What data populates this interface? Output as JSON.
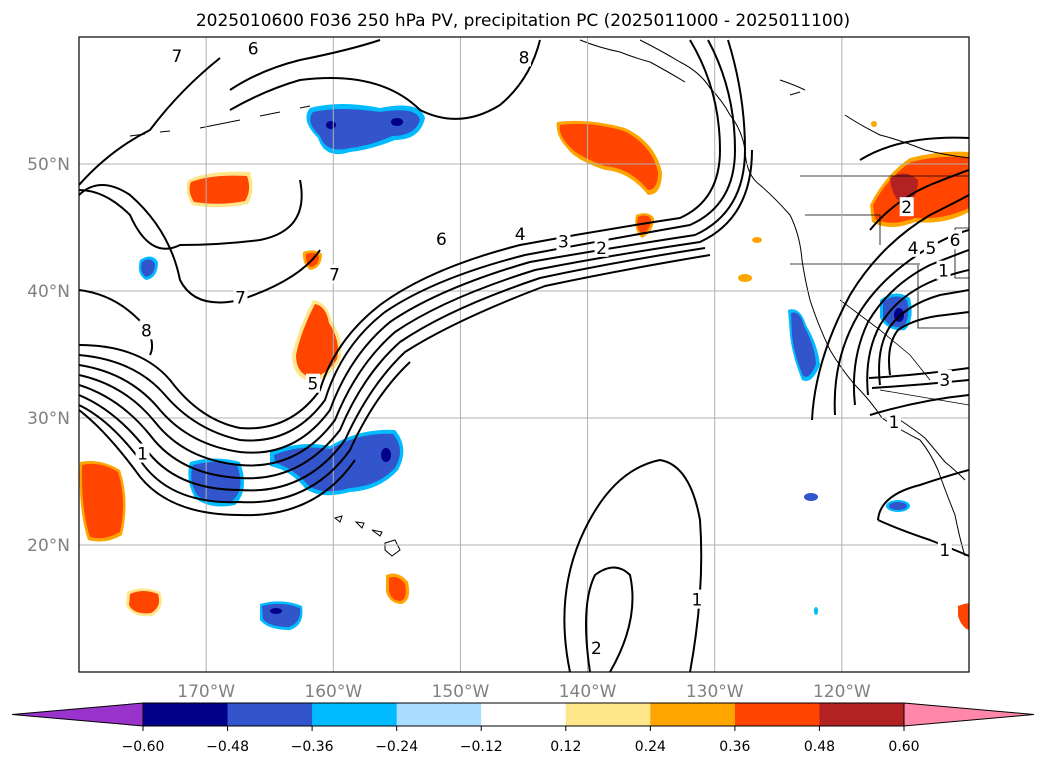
{
  "chart_data": {
    "type": "map-contour",
    "title": "2025010600 F036 250 hPa PV, precipitation PC (2025011000 - 2025011100)",
    "lon_range": [
      -180,
      -110
    ],
    "lat_range": [
      10,
      60
    ],
    "grid": true,
    "x_ticks": [
      {
        "lon": -170,
        "label": "170°W"
      },
      {
        "lon": -160,
        "label": "160°W"
      },
      {
        "lon": -150,
        "label": "150°W"
      },
      {
        "lon": -140,
        "label": "140°W"
      },
      {
        "lon": -130,
        "label": "130°W"
      },
      {
        "lon": -120,
        "label": "120°W"
      }
    ],
    "y_ticks": [
      {
        "lat": 20,
        "label": "20°N"
      },
      {
        "lat": 30,
        "label": "30°N"
      },
      {
        "lat": 40,
        "label": "40°N"
      },
      {
        "lat": 50,
        "label": "50°N"
      }
    ],
    "colorbar": {
      "extend": "both",
      "levels": [
        -0.6,
        -0.48,
        -0.36,
        -0.24,
        -0.12,
        0.12,
        0.24,
        0.36,
        0.48,
        0.6
      ],
      "tick_labels": [
        "−0.60",
        "−0.48",
        "−0.36",
        "−0.24",
        "−0.12",
        "0.12",
        "0.24",
        "0.36",
        "0.48",
        "0.60"
      ],
      "colors": [
        "#9933cc",
        "#00008b",
        "#3355cc",
        "#00bbff",
        "#aaddff",
        "#ffffff",
        "#ffe68a",
        "#ffa500",
        "#ff4500",
        "#b22222",
        "#ff88aa"
      ]
    },
    "contour_labels": [
      {
        "text": "6",
        "lon": -166.3,
        "lat": 59.1
      },
      {
        "text": "7",
        "lon": -172.3,
        "lat": 58.5
      },
      {
        "text": "8",
        "lon": -145.0,
        "lat": 58.4
      },
      {
        "text": "8",
        "lon": -174.7,
        "lat": 36.9
      },
      {
        "text": "7",
        "lon": -167.3,
        "lat": 39.5
      },
      {
        "text": "7",
        "lon": -159.9,
        "lat": 41.3
      },
      {
        "text": "6",
        "lon": -151.5,
        "lat": 44.1
      },
      {
        "text": "4",
        "lon": -145.3,
        "lat": 44.5
      },
      {
        "text": "3",
        "lon": -141.9,
        "lat": 43.9
      },
      {
        "text": "2",
        "lon": -138.9,
        "lat": 43.4
      },
      {
        "text": "5",
        "lon": -161.6,
        "lat": 32.7
      },
      {
        "text": "1",
        "lon": -175.0,
        "lat": 27.2
      },
      {
        "text": "1",
        "lon": -131.4,
        "lat": 15.7
      },
      {
        "text": "2",
        "lon": -139.3,
        "lat": 11.9
      },
      {
        "text": "2",
        "lon": -114.9,
        "lat": 46.6
      },
      {
        "text": "4",
        "lon": -114.4,
        "lat": 43.4
      },
      {
        "text": "5",
        "lon": -113.0,
        "lat": 43.4
      },
      {
        "text": "6",
        "lon": -111.1,
        "lat": 44.0
      },
      {
        "text": "1",
        "lon": -112.0,
        "lat": 41.6
      },
      {
        "text": "3",
        "lon": -111.9,
        "lat": 33.0
      },
      {
        "text": "1",
        "lon": -115.9,
        "lat": 29.7
      },
      {
        "text": "1",
        "lon": -111.9,
        "lat": 19.6
      }
    ]
  }
}
